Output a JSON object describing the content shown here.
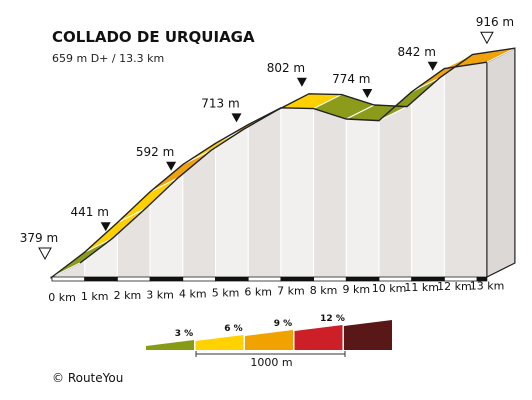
{
  "chart_data": {
    "type": "area",
    "title": "COLLADO DE URQUIAGA",
    "subtitle": "659 m D+ / 13.3 km",
    "x_unit": "km",
    "x_ticks": [
      0,
      1,
      2,
      3,
      4,
      5,
      6,
      7,
      8,
      9,
      10,
      11,
      12,
      13
    ],
    "x_tick_labels": [
      "0 km",
      "1 km",
      "2 km",
      "3 km",
      "4 km",
      "5 km",
      "6 km",
      "7 km",
      "8 km",
      "9 km",
      "10 km",
      "11 km",
      "12 km",
      "13 km"
    ],
    "profile": [
      {
        "km": 0,
        "elev": 379
      },
      {
        "km": 1,
        "elev": 441
      },
      {
        "km": 2,
        "elev": 515
      },
      {
        "km": 3,
        "elev": 592
      },
      {
        "km": 4,
        "elev": 660
      },
      {
        "km": 5,
        "elev": 713
      },
      {
        "km": 6,
        "elev": 760
      },
      {
        "km": 7,
        "elev": 802
      },
      {
        "km": 8,
        "elev": 800
      },
      {
        "km": 9,
        "elev": 774
      },
      {
        "km": 10,
        "elev": 770
      },
      {
        "km": 11,
        "elev": 842
      },
      {
        "km": 12,
        "elev": 900
      },
      {
        "km": 13.3,
        "elev": 916
      }
    ],
    "segment_grades": [
      "3 %",
      "6 %",
      "6 %",
      "9 %",
      "6 %",
      "9 %",
      "6 %",
      "6 %",
      "3 %",
      "3 %",
      "3 %",
      "9 %",
      "9 %",
      "6 %"
    ],
    "elevation_labels": [
      {
        "km": 0,
        "elev": 379,
        "text": "379 m",
        "marker": "start"
      },
      {
        "km": 1,
        "elev": 441,
        "text": "441 m",
        "marker": "point"
      },
      {
        "km": 3,
        "elev": 592,
        "text": "592 m",
        "marker": "point"
      },
      {
        "km": 5,
        "elev": 713,
        "text": "713 m",
        "marker": "point"
      },
      {
        "km": 7,
        "elev": 802,
        "text": "802 m",
        "marker": "point"
      },
      {
        "km": 9,
        "elev": 774,
        "text": "774 m",
        "marker": "point"
      },
      {
        "km": 11,
        "elev": 842,
        "text": "842 m",
        "marker": "point"
      },
      {
        "km": 13.3,
        "elev": 916,
        "text": "916 m",
        "marker": "end"
      }
    ],
    "legend": {
      "grades": [
        {
          "label": "3 %",
          "color": "#889b16"
        },
        {
          "label": "6 %",
          "color": "#ffd200"
        },
        {
          "label": "9 %",
          "color": "#f0a300"
        },
        {
          "label": "12 %",
          "color": "#cc1f28"
        },
        {
          "label": "",
          "color": "#5a1717"
        }
      ],
      "scale_label": "1000 m"
    },
    "grade_colors": {
      "3 %": "#8c9c1a",
      "6 %": "#ffd000",
      "9 %": "#efa20a"
    }
  },
  "footer": {
    "copyright": "© RouteYou"
  }
}
